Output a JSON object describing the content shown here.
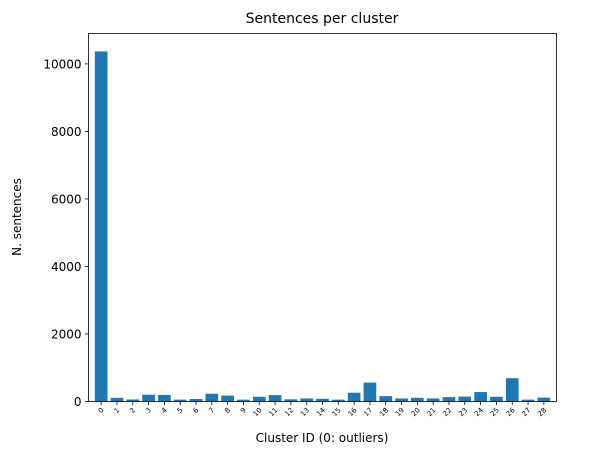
{
  "chart_data": {
    "type": "bar",
    "title": "Sentences per cluster",
    "xlabel": "Cluster ID (0: outliers)",
    "ylabel": "N. sentences",
    "categories": [
      "0",
      "1",
      "2",
      "3",
      "4",
      "5",
      "6",
      "7",
      "8",
      "9",
      "10",
      "11",
      "12",
      "13",
      "14",
      "15",
      "16",
      "17",
      "18",
      "19",
      "20",
      "21",
      "22",
      "23",
      "24",
      "25",
      "26",
      "27",
      "28"
    ],
    "values": [
      10370,
      110,
      60,
      200,
      195,
      55,
      75,
      230,
      175,
      55,
      140,
      190,
      65,
      90,
      80,
      55,
      260,
      560,
      160,
      90,
      110,
      90,
      130,
      145,
      280,
      140,
      690,
      55,
      115
    ],
    "ylim": [
      0,
      10900
    ],
    "yticks": [
      0,
      2000,
      4000,
      6000,
      8000,
      10000
    ],
    "ytick_labels": [
      "0",
      "2000",
      "4000",
      "6000",
      "8000",
      "10000"
    ],
    "bar_color": "#1f77b4",
    "grid": false,
    "legend": "none"
  }
}
